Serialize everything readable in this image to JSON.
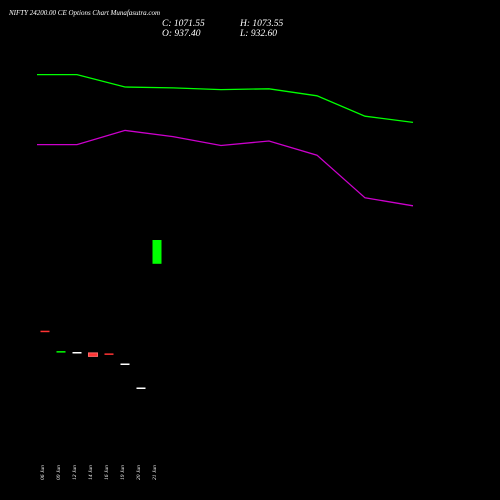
{
  "header": {
    "title": "NIFTY 24200.00 CE Options Chart Munafasutra.com",
    "close": "C: 1071.55",
    "high": "H: 1073.55",
    "open": "O: 937.40",
    "low": "L: 932.60"
  },
  "colors": {
    "background": "#000000",
    "upper_line": "#00ff00",
    "lower_line": "#cc00cc",
    "bull_candle": "#00ff00",
    "bear_candle": "#ff3333",
    "neutral_tick": "#ffffff"
  },
  "chart_data": {
    "type": "candlestick",
    "x_labels": [
      "06 Jun",
      "09 Jun",
      "12 Jun",
      "14 Jun",
      "16 Jun",
      "19 Jun",
      "20 Jun",
      "21 Jun"
    ],
    "candles": [
      {
        "label": "06 Jun",
        "open": 560,
        "close": 560,
        "color": "red"
      },
      {
        "label": "09 Jun",
        "open": 445,
        "close": 445,
        "color": "green"
      },
      {
        "label": "12 Jun",
        "open": 440,
        "close": 440,
        "color": "white"
      },
      {
        "label": "14 Jun",
        "open": 435,
        "close": 415,
        "color": "red"
      },
      {
        "label": "16 Jun",
        "open": 432,
        "close": 432,
        "color": "red"
      },
      {
        "label": "19 Jun",
        "open": 375,
        "close": 375,
        "color": "white"
      },
      {
        "label": "20 Jun",
        "open": 240,
        "close": 240,
        "color": "white"
      },
      {
        "label": "21 Jun",
        "open": 937.4,
        "close": 1071.55,
        "color": "green"
      }
    ],
    "series": [
      {
        "color": "#00ff00",
        "points": [
          [
            -0.5,
            2005
          ],
          [
            2,
            2005
          ],
          [
            5,
            1935
          ],
          [
            8,
            1930
          ],
          [
            11,
            1920
          ],
          [
            14,
            1925
          ],
          [
            17,
            1885
          ],
          [
            20,
            1770
          ],
          [
            23,
            1735
          ]
        ]
      },
      {
        "color": "#cc00cc",
        "points": [
          [
            -0.5,
            1610
          ],
          [
            2,
            1610
          ],
          [
            5,
            1690
          ],
          [
            8,
            1655
          ],
          [
            11,
            1605
          ],
          [
            14,
            1630
          ],
          [
            17,
            1550
          ],
          [
            20,
            1310
          ],
          [
            23,
            1265
          ]
        ]
      }
    ],
    "ylim": [
      0,
      2200
    ],
    "grid": false
  }
}
